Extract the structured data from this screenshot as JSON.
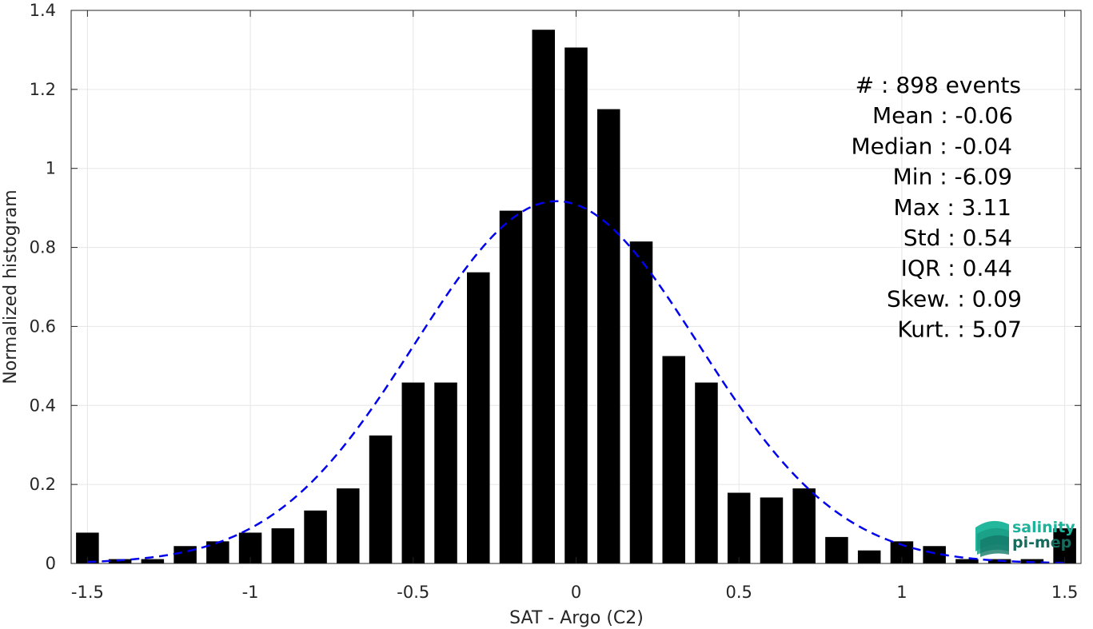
{
  "chart_data": {
    "type": "bar",
    "xlabel": "SAT - Argo (C2)",
    "ylabel": "Normalized histogram",
    "xlim": [
      -1.55,
      1.55
    ],
    "ylim": [
      0,
      1.4
    ],
    "grid": true,
    "xticks": [
      -1.5,
      -1,
      -0.5,
      0,
      0.5,
      1,
      1.5
    ],
    "xtick_labels": [
      "-1.5",
      "-1",
      "-0.5",
      "0",
      "0.5",
      "1",
      "1.5"
    ],
    "yticks": [
      0,
      0.2,
      0.4,
      0.6,
      0.8,
      1,
      1.2,
      1.4
    ],
    "ytick_labels": [
      "0",
      "0.2",
      "0.4",
      "0.6",
      "0.8",
      "1",
      "1.2",
      "1.4"
    ],
    "bar_width": 0.07,
    "bars": {
      "x": [
        -1.5,
        -1.4,
        -1.3,
        -1.2,
        -1.1,
        -1.0,
        -0.9,
        -0.8,
        -0.7,
        -0.6,
        -0.5,
        -0.4,
        -0.3,
        -0.2,
        -0.1,
        0.0,
        0.1,
        0.2,
        0.3,
        0.4,
        0.5,
        0.6,
        0.7,
        0.8,
        0.9,
        1.0,
        1.1,
        1.2,
        1.3,
        1.4,
        1.5
      ],
      "values": [
        0.078,
        0.011,
        0.011,
        0.044,
        0.056,
        0.078,
        0.089,
        0.134,
        0.19,
        0.324,
        0.458,
        0.458,
        0.737,
        0.893,
        1.351,
        1.306,
        1.15,
        0.815,
        0.525,
        0.458,
        0.179,
        0.167,
        0.19,
        0.067,
        0.033,
        0.056,
        0.044,
        0.011,
        0.011,
        0.011,
        0.089
      ],
      "color": "#000000"
    },
    "fit_curve": {
      "style": "dashed",
      "color": "#0000ee",
      "distribution": "normal",
      "mean": -0.06,
      "std": 0.435,
      "x_range": [
        -1.5,
        1.5
      ]
    },
    "annotation_lines": [
      "#  : 898 events",
      "Mean : -0.06",
      "Median : -0.04",
      "Min : -6.09",
      "Max : 3.11",
      "Std : 0.54",
      "IQR : 0.44",
      "Skew. : 0.09",
      "Kurt. : 5.07"
    ]
  },
  "logo": {
    "line1": "salinity",
    "line2": "pi-mep",
    "color1": "#1bb39a",
    "color2": "#176b5e"
  }
}
